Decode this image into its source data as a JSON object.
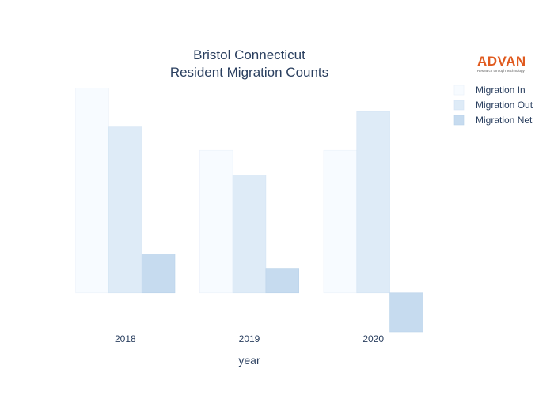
{
  "chart_data": {
    "type": "bar",
    "title_line1": "Bristol Connecticut",
    "title_line2": "Resident Migration Counts",
    "xlabel": "year",
    "ylabel": "",
    "categories": [
      "2018",
      "2019",
      "2020"
    ],
    "ylim": [
      -30,
      165
    ],
    "grid": false,
    "legend_position": "top-right",
    "series": [
      {
        "name": "Migration In",
        "values": [
          158,
          110,
          110
        ],
        "color": "#f7fbff",
        "stroke": "#eaf1f9"
      },
      {
        "name": "Migration Out",
        "values": [
          128,
          91,
          140
        ],
        "color": "#deebf7",
        "stroke": "#d2e3f3"
      },
      {
        "name": "Migration Net",
        "values": [
          30,
          19,
          -30
        ],
        "color": "#c6dbef",
        "stroke": "#b9d2ea"
      }
    ]
  },
  "logo": {
    "name": "ADVAN",
    "tagline": "Research through Technology"
  }
}
